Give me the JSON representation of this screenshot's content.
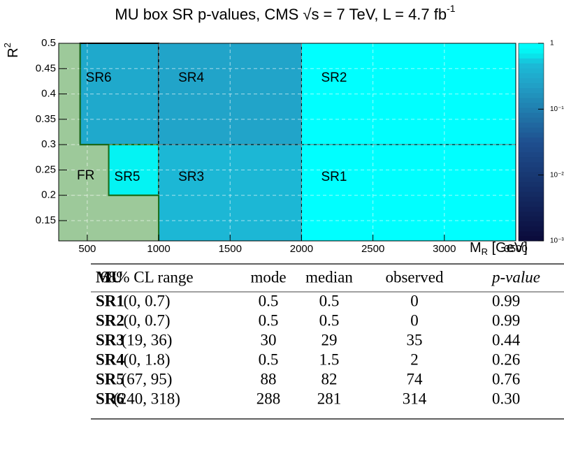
{
  "chart_data": {
    "type": "region-map",
    "title": "MU box SR p-values, CMS √s = 7 TeV, L = 4.7 fb",
    "title_sup": "-1",
    "xlabel": "M",
    "xlabel_sub": "R",
    "xlabel_rest": " [GeV]",
    "ylabel": "R",
    "ylabel_sup": "2",
    "xlim": [
      300,
      3500
    ],
    "xticks": [
      500,
      1000,
      1500,
      2000,
      2500,
      3000,
      3500
    ],
    "ylim": [
      0.11,
      0.5
    ],
    "yticks": [
      0.15,
      0.2,
      0.25,
      0.3,
      0.35,
      0.4,
      0.45,
      0.5
    ],
    "zscale": "log",
    "zlim": [
      0.001,
      1
    ],
    "zticks": [
      {
        "value": 1,
        "label": "1"
      },
      {
        "value": 0.1,
        "label": "10⁻¹"
      },
      {
        "value": 0.01,
        "label": "10⁻²"
      },
      {
        "value": 0.001,
        "label": "10⁻³"
      }
    ],
    "grid": true,
    "regions": [
      {
        "name": "SR6",
        "x": [
          450,
          1000
        ],
        "y": [
          0.3,
          0.5
        ],
        "value": 0.3
      },
      {
        "name": "SR4",
        "x": [
          1000,
          2000
        ],
        "y": [
          0.3,
          0.5
        ],
        "value": 0.26
      },
      {
        "name": "SR2",
        "x": [
          2000,
          3500
        ],
        "y": [
          0.3,
          0.5
        ],
        "value": 0.99
      },
      {
        "name": "SR5",
        "x": [
          650,
          1000
        ],
        "y": [
          0.2,
          0.3
        ],
        "value": 0.76
      },
      {
        "name": "SR3",
        "x": [
          1000,
          2000
        ],
        "y": [
          0.11,
          0.3
        ],
        "value": 0.44
      },
      {
        "name": "SR1",
        "x": [
          2000,
          3500
        ],
        "y": [
          0.11,
          0.3
        ],
        "value": 0.99
      }
    ],
    "fit_region": {
      "name": "FR",
      "color": "#9dc99a",
      "boxes": [
        {
          "x": [
            300,
            450
          ],
          "y": [
            0.3,
            0.5
          ]
        },
        {
          "x": [
            300,
            650
          ],
          "y": [
            0.2,
            0.3
          ]
        },
        {
          "x": [
            300,
            1000
          ],
          "y": [
            0.11,
            0.2
          ]
        }
      ]
    }
  },
  "table": {
    "header": [
      "MU",
      "68% CL range",
      "mode",
      "median",
      "observed",
      "p-value"
    ],
    "rows": [
      [
        "SR1",
        "(0, 0.7)",
        "0.5",
        "0.5",
        "0",
        "0.99"
      ],
      [
        "SR2",
        "(0, 0.7)",
        "0.5",
        "0.5",
        "0",
        "0.99"
      ],
      [
        "SR3",
        "(19, 36)",
        "30",
        "29",
        "35",
        "0.44"
      ],
      [
        "SR4",
        "(0, 1.8)",
        "0.5",
        "1.5",
        "2",
        "0.26"
      ],
      [
        "SR5",
        "(67, 95)",
        "88",
        "82",
        "74",
        "0.76"
      ],
      [
        "SR6",
        "(240, 318)",
        "288",
        "281",
        "314",
        "0.30"
      ]
    ]
  }
}
